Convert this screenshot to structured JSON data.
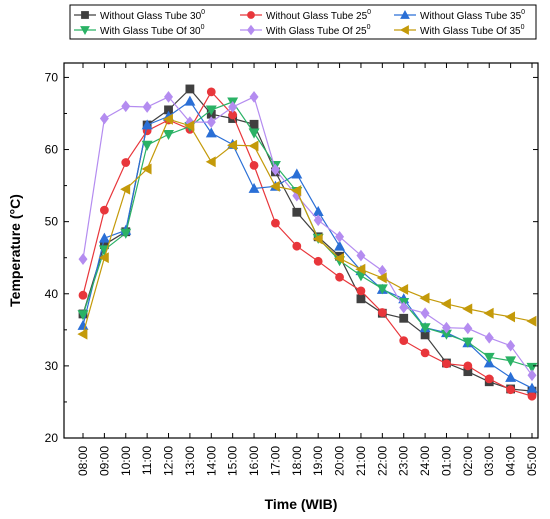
{
  "chart_data": {
    "type": "line",
    "xlabel": "Time (WIB)",
    "ylabel": "Temperature (°C)",
    "ylim": [
      20,
      72
    ],
    "yticks": [
      20,
      30,
      40,
      50,
      60,
      70
    ],
    "categories": [
      "08:00",
      "09:00",
      "10:00",
      "11:00",
      "12:00",
      "13:00",
      "14:00",
      "15:00",
      "16:00",
      "17:00",
      "18:00",
      "19:00",
      "20:00",
      "21:00",
      "22:00",
      "23:00",
      "24:00",
      "01:00",
      "02:00",
      "03:00",
      "04:00",
      "05:00"
    ],
    "legend_position": "top",
    "series": [
      {
        "name": "Without Glass Tube 30",
        "sup": "0",
        "color": "#404040",
        "marker": "square",
        "values": [
          37.2,
          46.8,
          48.6,
          63.4,
          65.5,
          68.4,
          64.9,
          64.3,
          63.5,
          56.9,
          51.3,
          47.9,
          45.2,
          39.3,
          37.3,
          36.6,
          34.3,
          30.4,
          29.2,
          27.8,
          26.8,
          26.5
        ]
      },
      {
        "name": "Without Glass Tube 25",
        "sup": "0",
        "color": "#e8363b",
        "marker": "circle",
        "values": [
          39.8,
          51.6,
          58.2,
          62.6,
          64.1,
          62.8,
          68.0,
          64.8,
          57.8,
          49.8,
          46.6,
          44.5,
          42.3,
          40.4,
          37.4,
          33.5,
          31.8,
          30.3,
          30.0,
          28.2,
          26.7,
          25.8
        ]
      },
      {
        "name": "Without Glass Tube 35",
        "sup": "0",
        "color": "#2a6fd6",
        "marker": "triangle-up",
        "values": [
          35.6,
          47.7,
          48.8,
          63.4,
          64.6,
          66.7,
          62.3,
          60.7,
          54.6,
          54.9,
          56.6,
          51.4,
          46.6,
          43.2,
          40.6,
          39.3,
          35.3,
          34.6,
          33.2,
          30.4,
          28.4,
          26.9
        ]
      },
      {
        "name": "With Glass Tube Of 30",
        "sup": "0",
        "color": "#2ab265",
        "marker": "triangle-down",
        "values": [
          37.1,
          46.1,
          48.4,
          60.6,
          62.1,
          63.2,
          65.5,
          66.6,
          62.3,
          57.8,
          54.2,
          47.7,
          44.6,
          42.5,
          40.7,
          38.8,
          35.3,
          34.4,
          33.3,
          31.2,
          30.7,
          29.8
        ]
      },
      {
        "name": "With Glass Tube Of 25",
        "sup": "0",
        "color": "#b48cf0",
        "marker": "diamond",
        "values": [
          44.8,
          64.3,
          66.0,
          65.9,
          67.3,
          63.8,
          63.8,
          65.9,
          67.3,
          57.2,
          53.6,
          50.2,
          47.9,
          45.3,
          43.2,
          38.1,
          37.3,
          35.3,
          35.2,
          33.9,
          32.8,
          28.7
        ]
      },
      {
        "name": "With Glass Tube Of 35",
        "sup": "0",
        "color": "#c49a0a",
        "marker": "triangle-left",
        "values": [
          34.4,
          45.0,
          54.5,
          57.3,
          64.2,
          63.3,
          58.3,
          60.6,
          60.5,
          54.9,
          54.3,
          47.6,
          44.9,
          43.4,
          42.2,
          40.6,
          39.4,
          38.6,
          37.9,
          37.3,
          36.8,
          36.2
        ]
      }
    ]
  }
}
